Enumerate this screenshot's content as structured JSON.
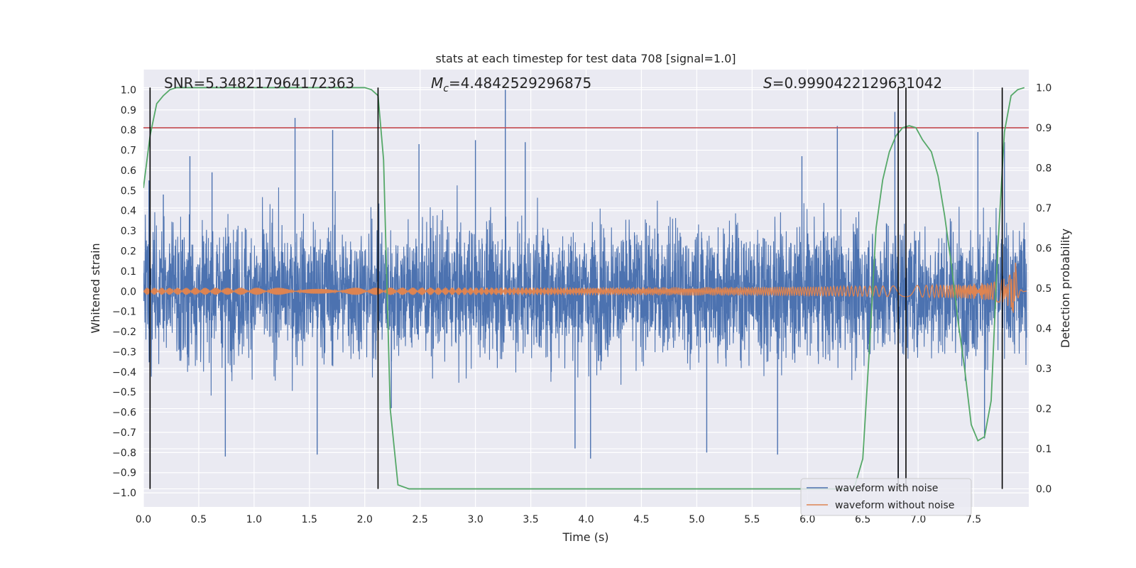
{
  "chart_data": {
    "type": "line",
    "title": "stats at each timestep for test data 708 [signal=1.0]",
    "xlabel": "Time (s)",
    "ylabel": "Whitened strain",
    "y2label": "Detection probability",
    "xlim": [
      0.0,
      8.0
    ],
    "ylim": [
      -1.07,
      1.1
    ],
    "y2lim": [
      -0.045,
      1.045
    ],
    "xticks": [
      0.0,
      0.5,
      1.0,
      1.5,
      2.0,
      2.5,
      3.0,
      3.5,
      4.0,
      4.5,
      5.0,
      5.5,
      6.0,
      6.5,
      7.0,
      7.5
    ],
    "xtick_labels": [
      "0.0",
      "0.5",
      "1.0",
      "1.5",
      "2.0",
      "2.5",
      "3.0",
      "3.5",
      "4.0",
      "4.5",
      "5.0",
      "5.5",
      "6.0",
      "6.5",
      "7.0",
      "7.5"
    ],
    "yticks": [
      1.0,
      0.9,
      0.8,
      0.7,
      0.6,
      0.5,
      0.4,
      0.3,
      0.2,
      0.1,
      0.0,
      -0.1,
      -0.2,
      -0.3,
      -0.4,
      -0.5,
      -0.6,
      -0.7,
      -0.8,
      -0.9,
      -1.0
    ],
    "ytick_labels": [
      "1.0",
      "0.9",
      "0.8",
      "0.7",
      "0.6",
      "0.5",
      "0.4",
      "0.3",
      "0.2",
      "0.1",
      "0.0",
      "−0.1",
      "−0.2",
      "−0.3",
      "−0.4",
      "−0.5",
      "−0.6",
      "−0.7",
      "−0.8",
      "−0.9",
      "−1.0"
    ],
    "y2ticks": [
      1.0,
      0.9,
      0.8,
      0.7,
      0.6,
      0.5,
      0.4,
      0.3,
      0.2,
      0.1,
      0.0
    ],
    "y2tick_labels": [
      "1.0",
      "0.9",
      "0.8",
      "0.7",
      "0.6",
      "0.5",
      "0.4",
      "0.3",
      "0.2",
      "0.1",
      "0.0"
    ],
    "grid": true,
    "annotations": {
      "snr": "SNR=5.348217964172363",
      "mc_symbol": "M",
      "mc_sub": "c",
      "mc_value": "=4.4842529296875",
      "s_symbol": "S",
      "s_value": "=0.9990422129631042"
    },
    "threshold_y2": 0.9,
    "vertical_lines_x": [
      0.06,
      2.12,
      6.82,
      6.89,
      7.76
    ],
    "noise_envelope": {
      "amplitude": 0.42,
      "peaks": [
        {
          "x": 0.05,
          "y": 0.55
        },
        {
          "x": 0.18,
          "y": 0.48
        },
        {
          "x": 0.42,
          "y": 0.67
        },
        {
          "x": 0.62,
          "y": 0.59
        },
        {
          "x": 1.37,
          "y": 0.86
        },
        {
          "x": 1.71,
          "y": 0.8
        },
        {
          "x": 2.49,
          "y": 0.73
        },
        {
          "x": 3.0,
          "y": 0.75
        },
        {
          "x": 3.27,
          "y": 1.0
        },
        {
          "x": 3.45,
          "y": 0.74
        },
        {
          "x": 5.95,
          "y": 0.67
        },
        {
          "x": 6.27,
          "y": 0.82
        },
        {
          "x": 6.79,
          "y": 0.89
        },
        {
          "x": 7.54,
          "y": 0.79
        },
        {
          "x": 7.78,
          "y": 0.74
        },
        {
          "x": 0.74,
          "y": -0.82
        },
        {
          "x": 1.57,
          "y": -0.81
        },
        {
          "x": 2.24,
          "y": -0.58
        },
        {
          "x": 4.04,
          "y": -0.83
        },
        {
          "x": 5.09,
          "y": -0.8
        },
        {
          "x": 5.73,
          "y": -0.81
        },
        {
          "x": 6.82,
          "y": -0.95
        },
        {
          "x": 3.9,
          "y": -0.78
        },
        {
          "x": 7.6,
          "y": -0.73
        }
      ]
    },
    "series": [
      {
        "name": "waveform with noise",
        "color": "#4c72b0",
        "kind": "noise"
      },
      {
        "name": "waveform without noise",
        "color": "#dd8452",
        "kind": "chirp",
        "start_amplitude": 0.012,
        "end_amplitude": 0.15,
        "merger_x": 7.88,
        "end_x": 7.98
      },
      {
        "name": "detection probability",
        "color": "#55a868",
        "axis": "y2",
        "x": [
          0.0,
          0.06,
          0.12,
          0.18,
          0.24,
          0.3,
          0.4,
          0.6,
          0.8,
          1.0,
          1.2,
          1.4,
          1.6,
          1.8,
          2.0,
          2.06,
          2.12,
          2.17,
          2.23,
          2.3,
          2.4,
          2.6,
          3.0,
          4.0,
          5.0,
          6.0,
          6.3,
          6.42,
          6.5,
          6.56,
          6.62,
          6.68,
          6.74,
          6.8,
          6.86,
          6.92,
          6.98,
          7.04,
          7.12,
          7.18,
          7.24,
          7.3,
          7.36,
          7.42,
          7.48,
          7.54,
          7.6,
          7.66,
          7.72,
          7.78,
          7.84,
          7.9,
          7.96
        ],
        "y": [
          0.75,
          0.88,
          0.96,
          0.98,
          0.995,
          1.0,
          1.0,
          1.0,
          1.0,
          1.0,
          1.0,
          1.0,
          1.0,
          1.0,
          1.0,
          0.995,
          0.98,
          0.82,
          0.2,
          0.01,
          0.0,
          0.0,
          0.0,
          0.0,
          0.0,
          0.0,
          0.0,
          0.0,
          0.075,
          0.35,
          0.65,
          0.77,
          0.84,
          0.88,
          0.9,
          0.905,
          0.9,
          0.87,
          0.84,
          0.78,
          0.68,
          0.56,
          0.42,
          0.3,
          0.16,
          0.12,
          0.13,
          0.22,
          0.6,
          0.89,
          0.98,
          0.995,
          1.0
        ]
      }
    ],
    "legend": {
      "placement": "lower-right",
      "entries": [
        "waveform with noise",
        "waveform without noise"
      ]
    }
  }
}
